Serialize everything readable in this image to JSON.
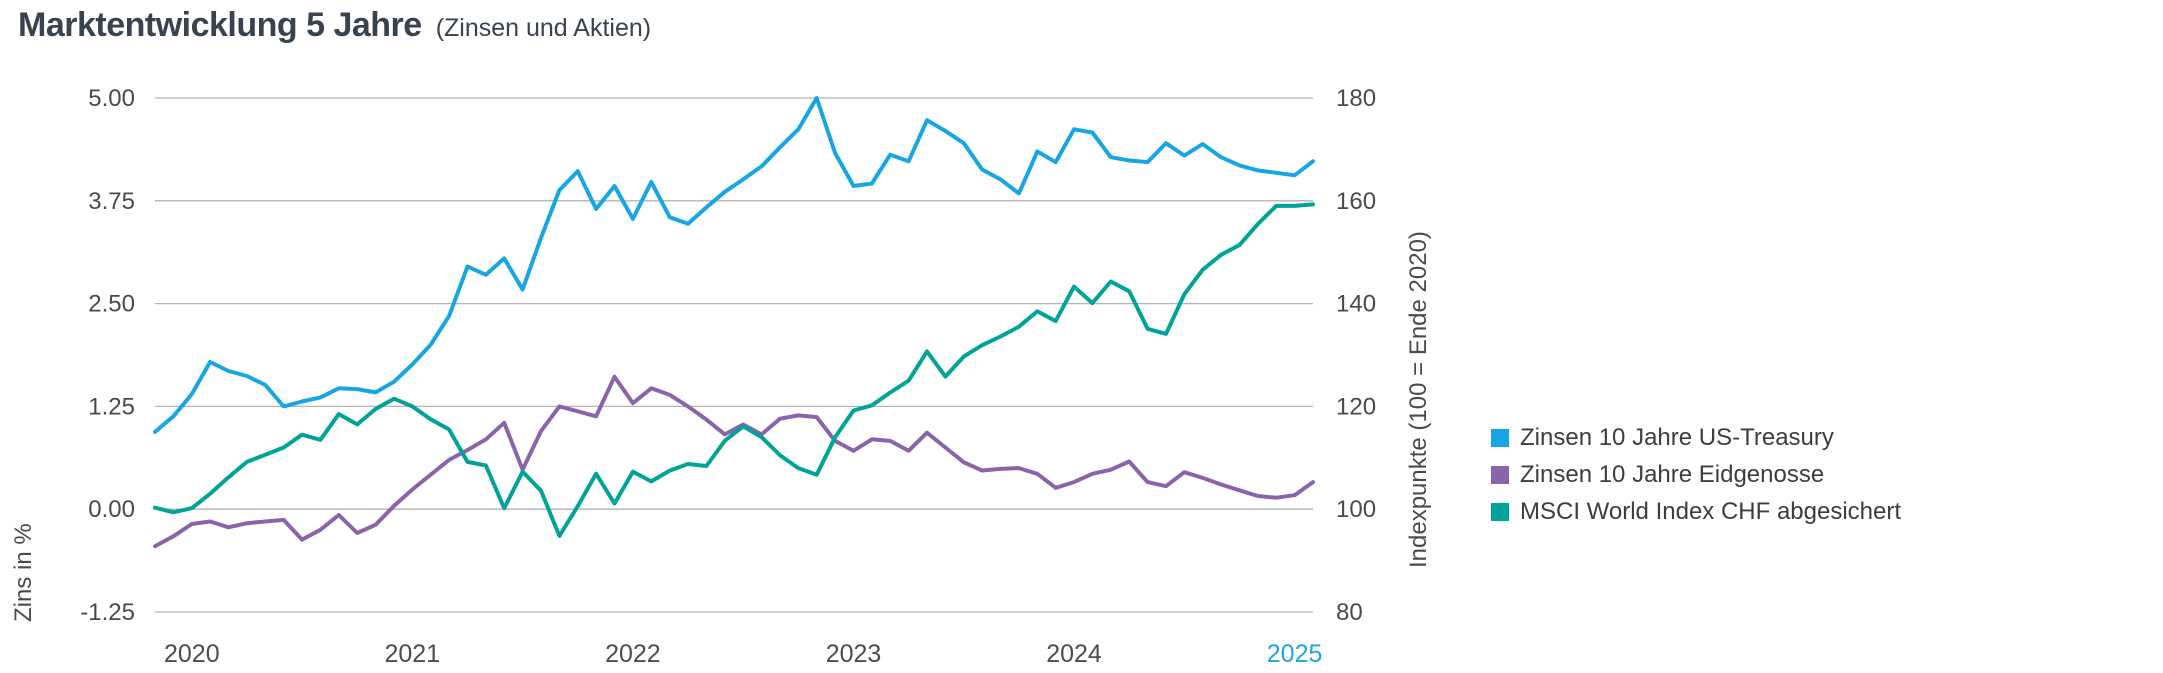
{
  "page": {
    "title": "Marktentwicklung 5 Jahre",
    "subtitle": "(Zinsen und Aktien)"
  },
  "chart_data": {
    "type": "line",
    "title": "Marktentwicklung 5 Jahre",
    "subtitle": "(Zinsen und Aktien)",
    "grid": "horizontal-only",
    "grid_color": "#b3b3b3",
    "background": "#ffffff",
    "legend_position": "right-middle",
    "x_axis": {
      "tick_labels": [
        "2020",
        "2021",
        "2022",
        "2023",
        "2024",
        "2025"
      ],
      "tick_point_indices": [
        2,
        14,
        26,
        38,
        50,
        62
      ],
      "note": "year-end tick positions on a monthly series",
      "label_color": "#4d4d4d",
      "highlighted_tick": "2025",
      "highlight_color": "#1ba6e2"
    },
    "y_left": {
      "title": "Zins in %",
      "tick_labels": [
        "5.00",
        "3.75",
        "2.50",
        "1.25",
        "0.00",
        "-1.25"
      ],
      "ticks": [
        5.0,
        3.75,
        2.5,
        1.25,
        0.0,
        -1.25
      ],
      "range": [
        -1.25,
        5.0
      ]
    },
    "y_right": {
      "title": "Indexpunkte (100 = Ende 2020)",
      "tick_labels": [
        "180",
        "160",
        "140",
        "120",
        "100",
        "80"
      ],
      "ticks": [
        180,
        160,
        140,
        120,
        100,
        80
      ],
      "range": [
        80,
        180
      ]
    },
    "series": [
      {
        "name": "Zinsen 10 Jahre US-Treasury",
        "color": "#17a6e3",
        "axis": "left",
        "unit": "%",
        "values": [
          0.94,
          1.13,
          1.4,
          1.79,
          1.68,
          1.62,
          1.51,
          1.25,
          1.31,
          1.36,
          1.47,
          1.46,
          1.42,
          1.55,
          1.76,
          2.0,
          2.35,
          2.95,
          2.85,
          3.05,
          2.67,
          3.3,
          3.88,
          4.11,
          3.65,
          3.93,
          3.53,
          3.98,
          3.55,
          3.47,
          3.67,
          3.86,
          4.01,
          4.17,
          4.4,
          4.62,
          5.0,
          4.33,
          3.93,
          3.96,
          4.31,
          4.23,
          4.73,
          4.6,
          4.45,
          4.13,
          4.01,
          3.84,
          4.35,
          4.22,
          4.62,
          4.58,
          4.28,
          4.24,
          4.22,
          4.45,
          4.3,
          4.44,
          4.28,
          4.18,
          4.12,
          4.09,
          4.06,
          4.23
        ]
      },
      {
        "name": "Zinsen 10 Jahre Eidgenosse",
        "color": "#8a64ab",
        "axis": "left",
        "unit": "%",
        "values": [
          -0.45,
          -0.33,
          -0.18,
          -0.15,
          -0.22,
          -0.17,
          -0.15,
          -0.13,
          -0.37,
          -0.25,
          -0.07,
          -0.29,
          -0.19,
          0.04,
          0.24,
          0.42,
          0.6,
          0.72,
          0.85,
          1.05,
          0.48,
          0.95,
          1.25,
          1.19,
          1.13,
          1.61,
          1.29,
          1.47,
          1.39,
          1.25,
          1.09,
          0.91,
          1.03,
          0.91,
          1.1,
          1.14,
          1.12,
          0.83,
          0.71,
          0.85,
          0.83,
          0.71,
          0.93,
          0.75,
          0.57,
          0.47,
          0.49,
          0.5,
          0.43,
          0.26,
          0.33,
          0.43,
          0.48,
          0.58,
          0.33,
          0.28,
          0.45,
          0.38,
          0.3,
          0.23,
          0.16,
          0.14,
          0.17,
          0.33
        ]
      },
      {
        "name": "MSCI World Index CHF abgesichert",
        "color": "#00a397",
        "axis": "right",
        "unit": "Indexpunkte",
        "values": [
          100.3,
          99.4,
          100.2,
          103.0,
          106.2,
          109.2,
          110.6,
          112.0,
          114.5,
          113.5,
          118.5,
          116.5,
          119.5,
          121.5,
          120.0,
          117.5,
          115.5,
          109.2,
          108.5,
          100.2,
          107.3,
          103.6,
          94.8,
          100.6,
          106.9,
          101.1,
          107.3,
          105.4,
          107.5,
          108.8,
          108.4,
          113.3,
          116.1,
          114.0,
          110.5,
          108.0,
          106.7,
          114.0,
          119.2,
          120.2,
          122.7,
          125.0,
          130.7,
          125.8,
          129.7,
          131.9,
          133.6,
          135.5,
          138.5,
          136.6,
          143.3,
          140.1,
          144.3,
          142.4,
          135.1,
          134.1,
          141.8,
          146.6,
          149.5,
          151.4,
          155.5,
          159.0,
          159.0,
          159.3
        ]
      }
    ]
  }
}
